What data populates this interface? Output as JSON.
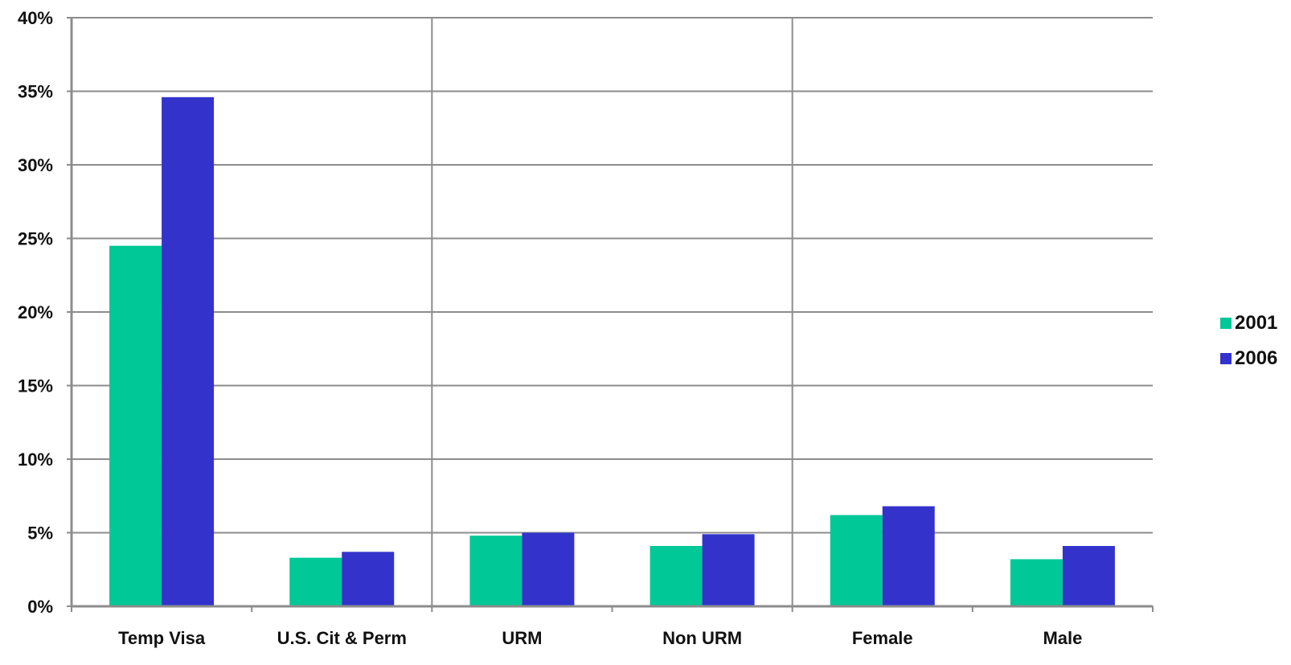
{
  "chart_data": {
    "type": "bar",
    "title": "",
    "xlabel": "",
    "ylabel": "",
    "categories": [
      "Temp Visa",
      "U.S. Cit & Perm",
      "URM",
      "Non URM",
      "Female",
      "Male"
    ],
    "series": [
      {
        "name": "2001",
        "color": "#00c896",
        "values": [
          24.5,
          3.3,
          4.8,
          4.1,
          6.2,
          3.2
        ]
      },
      {
        "name": "2006",
        "color": "#3333cc",
        "values": [
          34.6,
          3.7,
          5.0,
          4.9,
          6.8,
          4.1
        ]
      }
    ],
    "ylim": [
      0,
      40
    ],
    "yticks": [
      "0%",
      "5%",
      "10%",
      "15%",
      "20%",
      "25%",
      "30%",
      "35%",
      "40%"
    ],
    "grid": true,
    "legend_position": "right"
  }
}
